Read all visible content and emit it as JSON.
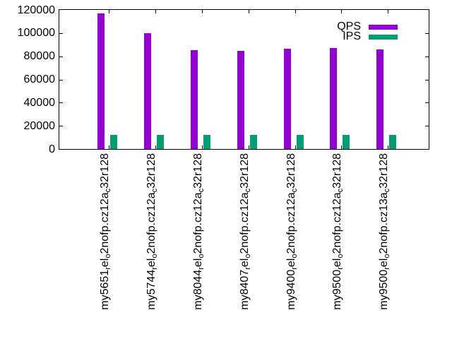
{
  "chart_data": {
    "type": "bar",
    "title": "",
    "xlabel": "",
    "ylabel": "",
    "ylim": [
      0,
      120000
    ],
    "ytick_step": 20000,
    "ytick_labels": [
      "0",
      "20000",
      "40000",
      "60000",
      "80000",
      "100000",
      "120000"
    ],
    "grid": false,
    "legend_position": "top-right-inside",
    "categories": [
      "my5651_rel_o2nofp.cz12a_c32r128",
      "my5744_rel_o2nofp.cz12a_c32r128",
      "my8044_rel_o2nofp.cz12a_c32r128",
      "my8407_rel_o2nofp.cz12a_c32r128",
      "my9400_rel_o2nofp.cz12a_c32r128",
      "my9500_rel_o2nofp.cz12a_c32r128",
      "my9500_rel_o2nofp.cz13a_c32r128"
    ],
    "series": [
      {
        "name": "QPS",
        "color": "#9400D3",
        "values": [
          117000,
          100000,
          85300,
          84400,
          86800,
          87300,
          85700
        ]
      },
      {
        "name": "IPS",
        "color": "#009E73",
        "values": [
          12000,
          12000,
          12000,
          12000,
          12000,
          12000,
          12000
        ]
      }
    ],
    "colors": {
      "border": "#000000",
      "text": "#000000",
      "background": "#FFFFFF"
    }
  }
}
